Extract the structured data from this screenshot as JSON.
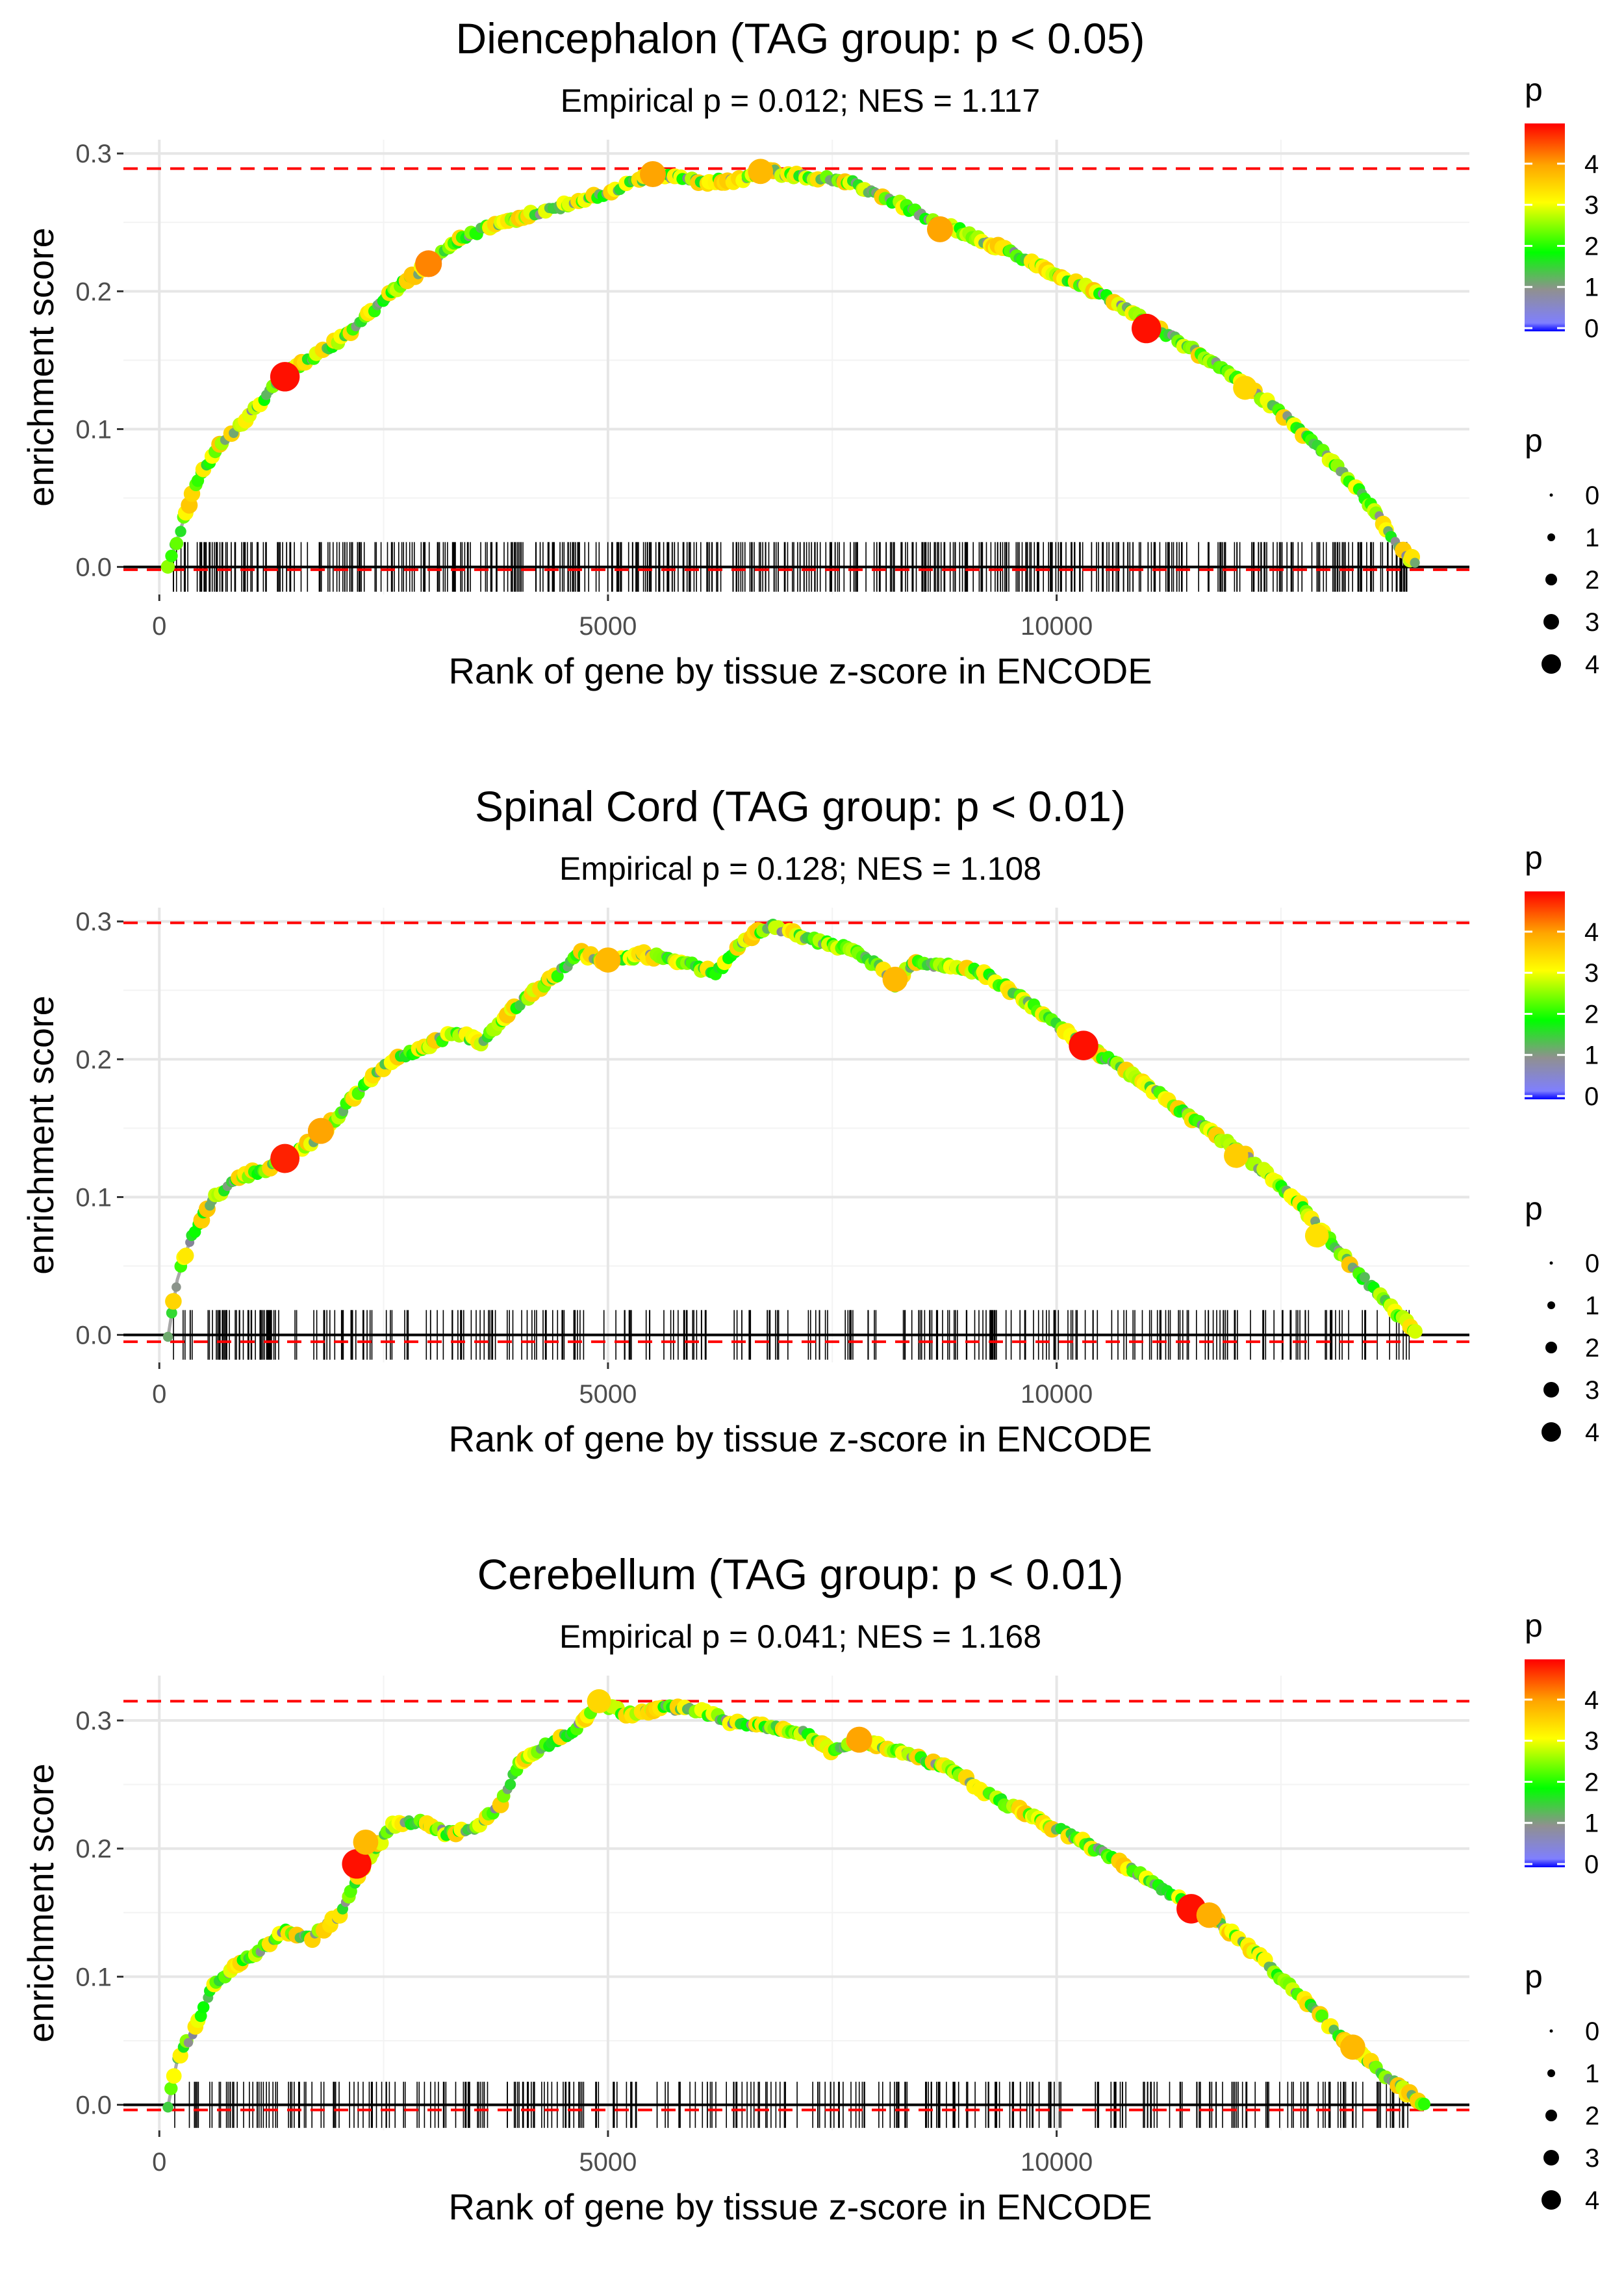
{
  "figure": {
    "xlabel": "Rank of gene by tissue z-score in ENCODE",
    "ylabel": "enrichment score",
    "colorbar_title": "p",
    "colorbar_ticks": [
      "4",
      "3",
      "2",
      "1",
      "0"
    ],
    "size_title": "p",
    "size_ticks": [
      "0",
      "1",
      "2",
      "3",
      "4"
    ],
    "color_scale": [
      "#0000ff",
      "#909090",
      "#00ff00",
      "#ffff00",
      "#ffa500",
      "#ff0000"
    ]
  },
  "chart_data": [
    {
      "type": "line",
      "title": "Diencephalon (TAG group: p < 0.05)",
      "subtitle": "Empirical p = 0.012; NES = 1.117",
      "xlabel": "Rank of gene by tissue z-score in ENCODE",
      "ylabel": "enrichment score",
      "xlim": [
        -400,
        14600
      ],
      "ylim": [
        -0.02,
        0.31
      ],
      "xticks": [
        0,
        5000,
        10000
      ],
      "xtick_labels": [
        "0",
        "5000",
        "10000"
      ],
      "yticks": [
        0.0,
        0.1,
        0.2,
        0.3
      ],
      "ytick_labels": [
        "0.0",
        "0.1",
        "0.2",
        "0.3"
      ],
      "max_es_line": 0.289,
      "min_es_line": -0.002,
      "curve": [
        [
          100,
          0.0
        ],
        [
          200,
          0.02
        ],
        [
          400,
          0.06
        ],
        [
          700,
          0.09
        ],
        [
          1000,
          0.11
        ],
        [
          1400,
          0.14
        ],
        [
          1800,
          0.155
        ],
        [
          2200,
          0.175
        ],
        [
          2600,
          0.2
        ],
        [
          3000,
          0.22
        ],
        [
          3400,
          0.24
        ],
        [
          3800,
          0.25
        ],
        [
          4100,
          0.255
        ],
        [
          4500,
          0.262
        ],
        [
          5000,
          0.272
        ],
        [
          5500,
          0.285
        ],
        [
          6000,
          0.28
        ],
        [
          6400,
          0.28
        ],
        [
          6800,
          0.287
        ],
        [
          7200,
          0.283
        ],
        [
          7700,
          0.279
        ],
        [
          8200,
          0.265
        ],
        [
          8600,
          0.252
        ],
        [
          9000,
          0.242
        ],
        [
          9500,
          0.228
        ],
        [
          10000,
          0.212
        ],
        [
          10500,
          0.198
        ],
        [
          11000,
          0.178
        ],
        [
          11500,
          0.158
        ],
        [
          12000,
          0.138
        ],
        [
          12500,
          0.112
        ],
        [
          13000,
          0.082
        ],
        [
          13500,
          0.045
        ],
        [
          13800,
          0.015
        ],
        [
          14000,
          0.003
        ]
      ],
      "highlights": [
        {
          "x": 1400,
          "y": 0.138,
          "p": 4.9
        },
        {
          "x": 3000,
          "y": 0.22,
          "p": 4.2
        },
        {
          "x": 5500,
          "y": 0.285,
          "p": 4.0
        },
        {
          "x": 6700,
          "y": 0.287,
          "p": 3.8
        },
        {
          "x": 8700,
          "y": 0.245,
          "p": 4.0
        },
        {
          "x": 11000,
          "y": 0.173,
          "p": 4.9
        },
        {
          "x": 12100,
          "y": 0.13,
          "p": 3.5
        }
      ],
      "n_hits": 500,
      "hit_seed": 11
    },
    {
      "type": "line",
      "title": "Spinal Cord (TAG group: p < 0.01)",
      "subtitle": "Empirical p = 0.128; NES = 1.108",
      "xlabel": "Rank of gene by tissue z-score in ENCODE",
      "ylabel": "enrichment score",
      "xlim": [
        -400,
        14600
      ],
      "ylim": [
        -0.02,
        0.31
      ],
      "xticks": [
        0,
        5000,
        10000
      ],
      "xtick_labels": [
        "0",
        "5000",
        "10000"
      ],
      "yticks": [
        0.0,
        0.1,
        0.2,
        0.3
      ],
      "ytick_labels": [
        "0.0",
        "0.1",
        "0.2",
        "0.3"
      ],
      "max_es_line": 0.299,
      "min_es_line": -0.005,
      "curve": [
        [
          100,
          0.0
        ],
        [
          200,
          0.04
        ],
        [
          350,
          0.07
        ],
        [
          600,
          0.1
        ],
        [
          900,
          0.115
        ],
        [
          1200,
          0.12
        ],
        [
          1400,
          0.128
        ],
        [
          1800,
          0.145
        ],
        [
          2200,
          0.175
        ],
        [
          2600,
          0.2
        ],
        [
          3000,
          0.21
        ],
        [
          3300,
          0.22
        ],
        [
          3600,
          0.212
        ],
        [
          4000,
          0.24
        ],
        [
          4400,
          0.26
        ],
        [
          4700,
          0.277
        ],
        [
          5000,
          0.27
        ],
        [
          5400,
          0.276
        ],
        [
          5800,
          0.272
        ],
        [
          6200,
          0.262
        ],
        [
          6500,
          0.285
        ],
        [
          6800,
          0.297
        ],
        [
          7200,
          0.288
        ],
        [
          7700,
          0.28
        ],
        [
          8000,
          0.268
        ],
        [
          8200,
          0.255
        ],
        [
          8400,
          0.27
        ],
        [
          8800,
          0.268
        ],
        [
          9200,
          0.262
        ],
        [
          9600,
          0.245
        ],
        [
          10000,
          0.225
        ],
        [
          10300,
          0.21
        ],
        [
          10700,
          0.195
        ],
        [
          11200,
          0.172
        ],
        [
          11700,
          0.148
        ],
        [
          12200,
          0.125
        ],
        [
          12700,
          0.095
        ],
        [
          13100,
          0.065
        ],
        [
          13500,
          0.035
        ],
        [
          13800,
          0.015
        ],
        [
          14000,
          0.003
        ]
      ],
      "highlights": [
        {
          "x": 1400,
          "y": 0.128,
          "p": 4.8
        },
        {
          "x": 1800,
          "y": 0.148,
          "p": 4.0
        },
        {
          "x": 5000,
          "y": 0.272,
          "p": 3.8
        },
        {
          "x": 8200,
          "y": 0.258,
          "p": 3.8
        },
        {
          "x": 10300,
          "y": 0.21,
          "p": 4.9
        },
        {
          "x": 12000,
          "y": 0.13,
          "p": 3.6
        },
        {
          "x": 12900,
          "y": 0.072,
          "p": 3.4
        }
      ],
      "n_hits": 310,
      "hit_seed": 23
    },
    {
      "type": "line",
      "title": "Cerebellum (TAG group: p < 0.01)",
      "subtitle": "Empirical p = 0.041; NES = 1.168",
      "xlabel": "Rank of gene by tissue z-score in ENCODE",
      "ylabel": "enrichment score",
      "xlim": [
        -400,
        14600
      ],
      "ylim": [
        -0.02,
        0.335
      ],
      "xticks": [
        0,
        5000,
        10000
      ],
      "xtick_labels": [
        "0",
        "5000",
        "10000"
      ],
      "yticks": [
        0.0,
        0.1,
        0.2,
        0.3
      ],
      "ytick_labels": [
        "0.0",
        "0.1",
        "0.2",
        "0.3"
      ],
      "max_es_line": 0.315,
      "min_es_line": -0.004,
      "curve": [
        [
          100,
          0.0
        ],
        [
          200,
          0.035
        ],
        [
          400,
          0.06
        ],
        [
          600,
          0.095
        ],
        [
          900,
          0.11
        ],
        [
          1200,
          0.125
        ],
        [
          1400,
          0.135
        ],
        [
          1700,
          0.13
        ],
        [
          2000,
          0.148
        ],
        [
          2300,
          0.19
        ],
        [
          2600,
          0.218
        ],
        [
          2900,
          0.222
        ],
        [
          3200,
          0.212
        ],
        [
          3500,
          0.215
        ],
        [
          3800,
          0.235
        ],
        [
          4000,
          0.265
        ],
        [
          4300,
          0.28
        ],
        [
          4600,
          0.29
        ],
        [
          4900,
          0.315
        ],
        [
          5200,
          0.305
        ],
        [
          5600,
          0.31
        ],
        [
          6000,
          0.308
        ],
        [
          6400,
          0.298
        ],
        [
          6800,
          0.295
        ],
        [
          7200,
          0.29
        ],
        [
          7500,
          0.275
        ],
        [
          7800,
          0.285
        ],
        [
          8300,
          0.275
        ],
        [
          8800,
          0.262
        ],
        [
          9300,
          0.24
        ],
        [
          9800,
          0.222
        ],
        [
          10300,
          0.205
        ],
        [
          10800,
          0.185
        ],
        [
          11300,
          0.163
        ],
        [
          11700,
          0.148
        ],
        [
          12200,
          0.12
        ],
        [
          12700,
          0.085
        ],
        [
          13100,
          0.058
        ],
        [
          13500,
          0.033
        ],
        [
          13800,
          0.015
        ],
        [
          14100,
          0.0
        ]
      ],
      "highlights": [
        {
          "x": 2200,
          "y": 0.188,
          "p": 4.9
        },
        {
          "x": 2300,
          "y": 0.205,
          "p": 3.8
        },
        {
          "x": 4900,
          "y": 0.315,
          "p": 3.5
        },
        {
          "x": 7800,
          "y": 0.285,
          "p": 4.0
        },
        {
          "x": 11500,
          "y": 0.153,
          "p": 4.9
        },
        {
          "x": 11700,
          "y": 0.148,
          "p": 3.9
        },
        {
          "x": 13300,
          "y": 0.045,
          "p": 3.8
        }
      ],
      "n_hits": 330,
      "hit_seed": 37
    }
  ]
}
